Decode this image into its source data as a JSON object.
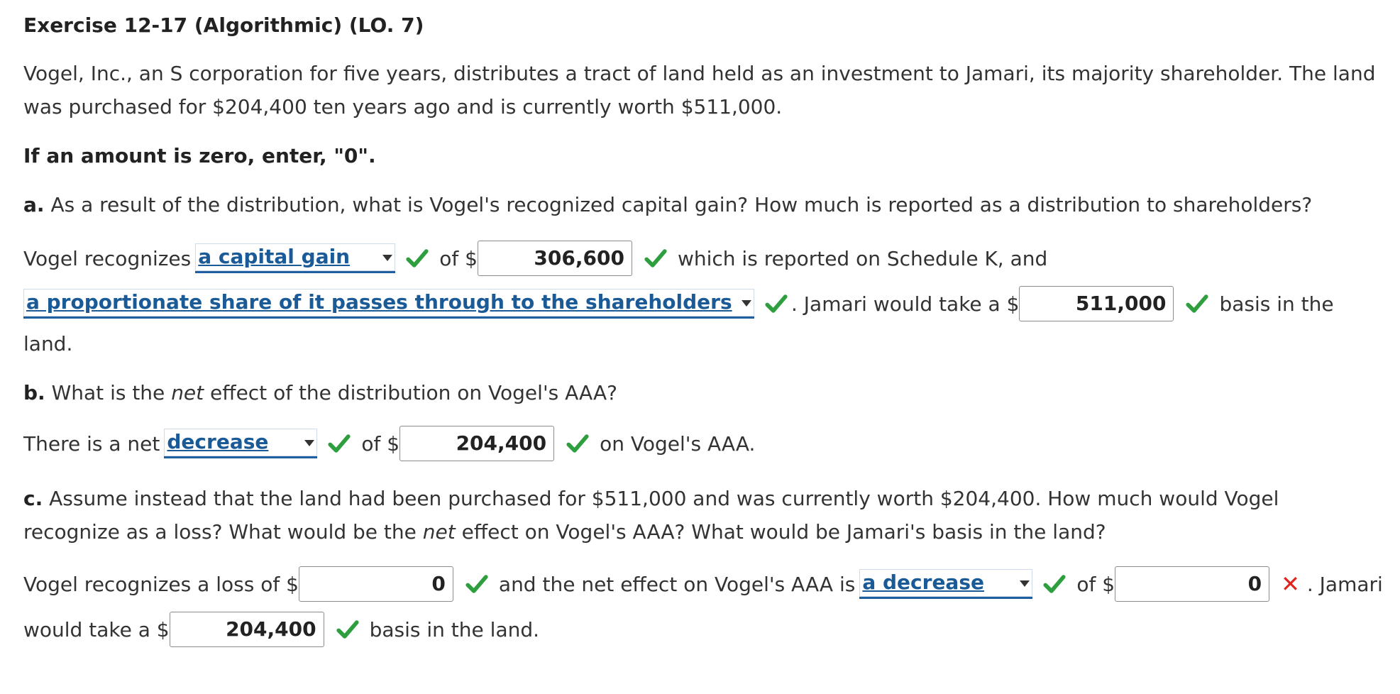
{
  "title": "Exercise 12-17 (Algorithmic) (LO. 7)",
  "intro": "Vogel, Inc., an S corporation for five years, distributes a tract of land held as an investment to Jamari, its majority shareholder. The land was purchased for $204,400 ten years ago and is currently worth $511,000.",
  "instruction": "If an amount is zero, enter, \"0\".",
  "part_a": {
    "letter": "a.",
    "question": "As a result of the distribution, what is Vogel's recognized capital gain? How much is reported as a distribution to shareholders?",
    "t1": "Vogel recognizes",
    "select1": "a capital gain",
    "t2": "of $",
    "input1": "306,600",
    "t3": "which is reported on Schedule K, and",
    "select2": "a proportionate share of it passes through to the shareholders",
    "t4": ". Jamari would take a $",
    "input2": "511,000",
    "t5": "basis in the",
    "t6": "land."
  },
  "part_b": {
    "letter": "b.",
    "q1": "What is the",
    "q_em": "net",
    "q2": "effect of the distribution on Vogel's AAA?",
    "t1": "There is a net",
    "select1": "decrease",
    "t2": "of $",
    "input1": "204,400",
    "t3": "on Vogel's AAA."
  },
  "part_c": {
    "letter": "c.",
    "q1": "Assume instead that the land had been purchased for $511,000 and was currently worth $204,400. How much would Vogel recognize as a loss? What would be the",
    "q_em": "net",
    "q2": "effect on Vogel's AAA? What would be Jamari's basis in the land?",
    "t1": "Vogel recognizes a loss of $",
    "input1": "0",
    "t2": "and the net effect on Vogel's AAA is",
    "select1": "a decrease",
    "t3": "of $",
    "input2": "0",
    "t4": ". Jamari",
    "t5": "would take a $",
    "input3": "204,400",
    "t6": "basis in the land."
  },
  "colors": {
    "check": "#2e9e3e",
    "cross": "#e0231c",
    "select_text": "#1a5a96"
  }
}
